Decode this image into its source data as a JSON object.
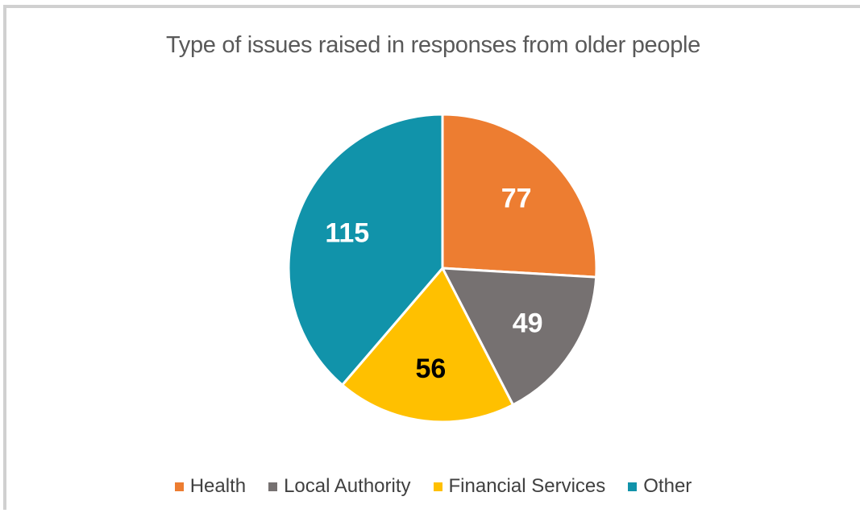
{
  "chart_data": {
    "type": "pie",
    "title": "Type of issues raised in responses from older people",
    "categories": [
      "Health",
      "Local Authority",
      "Financial Services",
      "Other"
    ],
    "values": [
      77,
      49,
      56,
      115
    ],
    "colors": [
      "#ED7D31",
      "#767171",
      "#FFC000",
      "#1193AA"
    ],
    "label_colors": [
      "#ffffff",
      "#ffffff",
      "#000000",
      "#ffffff"
    ],
    "start_angle_deg": 0,
    "direction": "clockwise",
    "legend_position": "bottom"
  }
}
